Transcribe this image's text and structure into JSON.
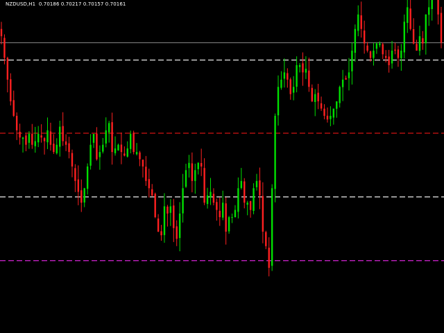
{
  "header": {
    "symbol": "NZDUSD,H1",
    "ohlc": "0.70186 0.70217 0.70157 0.70161"
  },
  "chart_data": {
    "type": "candlestick",
    "title": "NZDUSD,H1",
    "colors": {
      "background": "#000000",
      "bull": "#00e000",
      "bear": "#ff2020",
      "current_price_line": "#888888"
    },
    "price_range": [
      0.6976,
      0.7022
    ],
    "horizontal_levels": [
      {
        "name": "current-price",
        "price": 0.70161,
        "color": "#888888",
        "style": "solid"
      },
      {
        "name": "level-white-upper",
        "price": 0.70137,
        "color": "#d8d8d8",
        "style": "dashed"
      },
      {
        "name": "level-red",
        "price": 0.70036,
        "color": "#b01010",
        "style": "dashed"
      },
      {
        "name": "level-white-lower",
        "price": 0.69948,
        "color": "#d8d8d8",
        "style": "dashed"
      },
      {
        "name": "level-magenta",
        "price": 0.6986,
        "color": "#c020c0",
        "style": "dashed"
      }
    ],
    "closes": [
      0.7017,
      0.7014,
      0.7011,
      0.7008,
      0.7006,
      0.7004,
      0.7003,
      0.7003,
      0.7002,
      0.70035,
      0.7002,
      0.70025,
      0.70035,
      0.7003,
      0.70025,
      0.7004,
      0.7002,
      0.7001,
      0.7002,
      0.70045,
      0.70025,
      0.7002,
      0.7001,
      0.6999,
      0.6997,
      0.69955,
      0.6994,
      0.6996,
      0.6999,
      0.7002,
      0.70035,
      0.7,
      0.7001,
      0.7002,
      0.7004,
      0.7005,
      0.7001,
      0.70015,
      0.7002,
      0.7001,
      0.70005,
      0.70015,
      0.70035,
      0.7001,
      0.7001,
      0.7,
      0.6999,
      0.6997,
      0.6996,
      0.6995,
      0.6992,
      0.699,
      0.69895,
      0.69935,
      0.69925,
      0.69935,
      0.69905,
      0.6989,
      0.69925,
      0.6996,
      0.69985,
      0.69995,
      0.6997,
      0.69985,
      0.69995,
      0.6999,
      0.6994,
      0.6995,
      0.69955,
      0.6994,
      0.6993,
      0.6992,
      0.6994,
      0.699,
      0.6992,
      0.6992,
      0.6993,
      0.6996,
      0.6997,
      0.6994,
      0.6994,
      0.6993,
      0.6996,
      0.6997,
      0.6995,
      0.699,
      0.6988,
      0.6985,
      0.6996,
      0.7006,
      0.701,
      0.7011,
      0.7012,
      0.7011,
      0.7009,
      0.701,
      0.7013,
      0.7013,
      0.7012,
      0.70125,
      0.701,
      0.7008,
      0.7009,
      0.7008,
      0.7007,
      0.7006,
      0.70055,
      0.7006,
      0.7007,
      0.7008,
      0.701,
      0.7011,
      0.7011,
      0.7012,
      0.7015,
      0.7018,
      0.702,
      0.7018,
      0.7016,
      0.7015,
      0.7014,
      0.7015,
      0.7016,
      0.7016,
      0.70145,
      0.7014,
      0.7013,
      0.7015,
      0.7015,
      0.7014,
      0.7015,
      0.7019,
      0.7021,
      0.7018,
      0.7016,
      0.7015,
      0.7017,
      0.7016,
      0.702,
      0.7021,
      0.7023,
      0.7024,
      0.702,
      0.70161
    ]
  }
}
